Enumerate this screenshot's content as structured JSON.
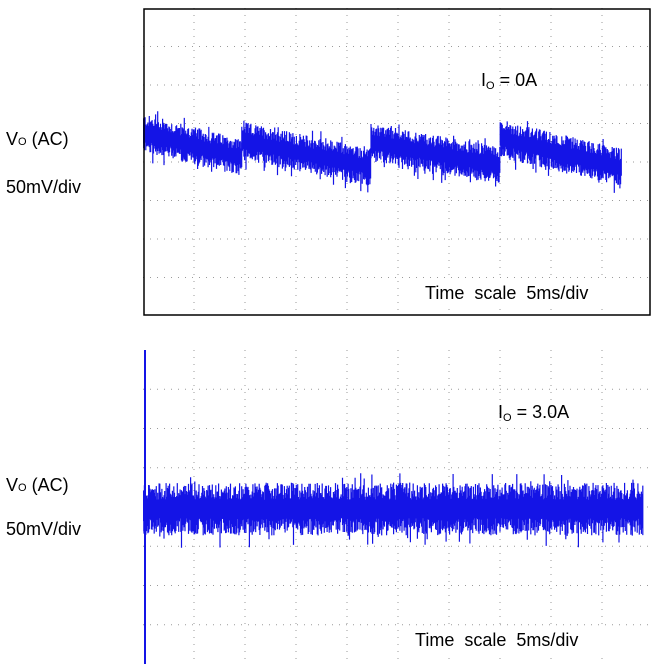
{
  "colors": {
    "trace": "#1414e6",
    "frame": "#000000",
    "grid": "#9a9a9a",
    "background": "#ffffff"
  },
  "chart_data": [
    {
      "type": "line",
      "grid": true,
      "divisions": {
        "x": 10,
        "y": 8
      },
      "left_labels": {
        "signal_main": "V",
        "signal_sub": "O",
        "signal_suffix": " (AC)",
        "scale": "50mV/div"
      },
      "annotation": {
        "main": "I",
        "sub": "O",
        "value": " = 0A"
      },
      "time_scale": "Time  scale  5ms/div",
      "trace": {
        "name": "",
        "noise_band_div": 0.5,
        "segments": [
          {
            "x_start_div": 0.0,
            "x_end_div": 2.6,
            "y_start_div": 0.55,
            "y_end_div": -0.1
          },
          {
            "x_start_div": 2.6,
            "x_end_div": 6.0,
            "y_start_div": 0.35,
            "y_end_div": -0.35
          },
          {
            "x_start_div": 6.0,
            "x_end_div": 9.4,
            "y_start_div": 0.3,
            "y_end_div": -0.3
          },
          {
            "x_start_div": 9.4,
            "x_end_div": 12.6,
            "y_start_div": 0.4,
            "y_end_div": -0.35
          }
        ]
      }
    },
    {
      "type": "line",
      "grid": true,
      "divisions": {
        "x": 10,
        "y": 8
      },
      "left_labels": {
        "signal_main": "V",
        "signal_sub": "O",
        "signal_suffix": " (AC)",
        "scale": "50mV/div"
      },
      "annotation": {
        "main": "I",
        "sub": "O",
        "value": " = 3.0A"
      },
      "time_scale": "Time  scale  5ms/div",
      "trace": {
        "name": "",
        "noise_band_div": 0.55,
        "segments": [
          {
            "x_start_div": 0.0,
            "x_end_div": 10.0,
            "y_start_div": 0.0,
            "y_end_div": 0.0
          }
        ]
      }
    }
  ]
}
